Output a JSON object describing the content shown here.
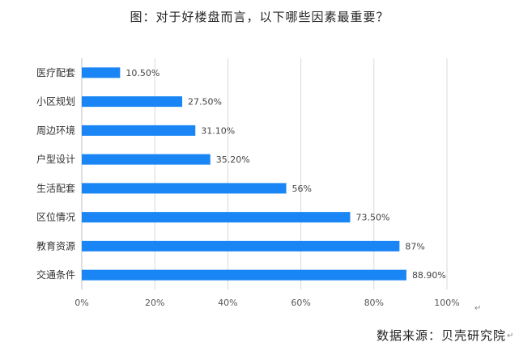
{
  "chart_data": {
    "type": "bar",
    "orientation": "horizontal",
    "title": "图：对于好楼盘而言，以下哪些因素最重要？",
    "categories": [
      "医疗配套",
      "小区规划",
      "周边环境",
      "户型设计",
      "生活配套",
      "区位情况",
      "教育资源",
      "交通条件"
    ],
    "values": [
      10.5,
      27.5,
      31.1,
      35.2,
      56,
      73.5,
      87,
      88.9
    ],
    "value_labels": [
      "10.50%",
      "27.50%",
      "31.10%",
      "35.20%",
      "56%",
      "73.50%",
      "87%",
      "88.90%"
    ],
    "x_ticks": [
      "0%",
      "20%",
      "40%",
      "60%",
      "80%",
      "100%"
    ],
    "xlim": [
      0,
      100
    ],
    "xlabel": "",
    "ylabel": "",
    "grid": "vertical",
    "bar_color": "#1a86f5",
    "grid_color": "#d9d9d9"
  },
  "source": "数据来源：贝壳研究院",
  "return_mark": "↵"
}
